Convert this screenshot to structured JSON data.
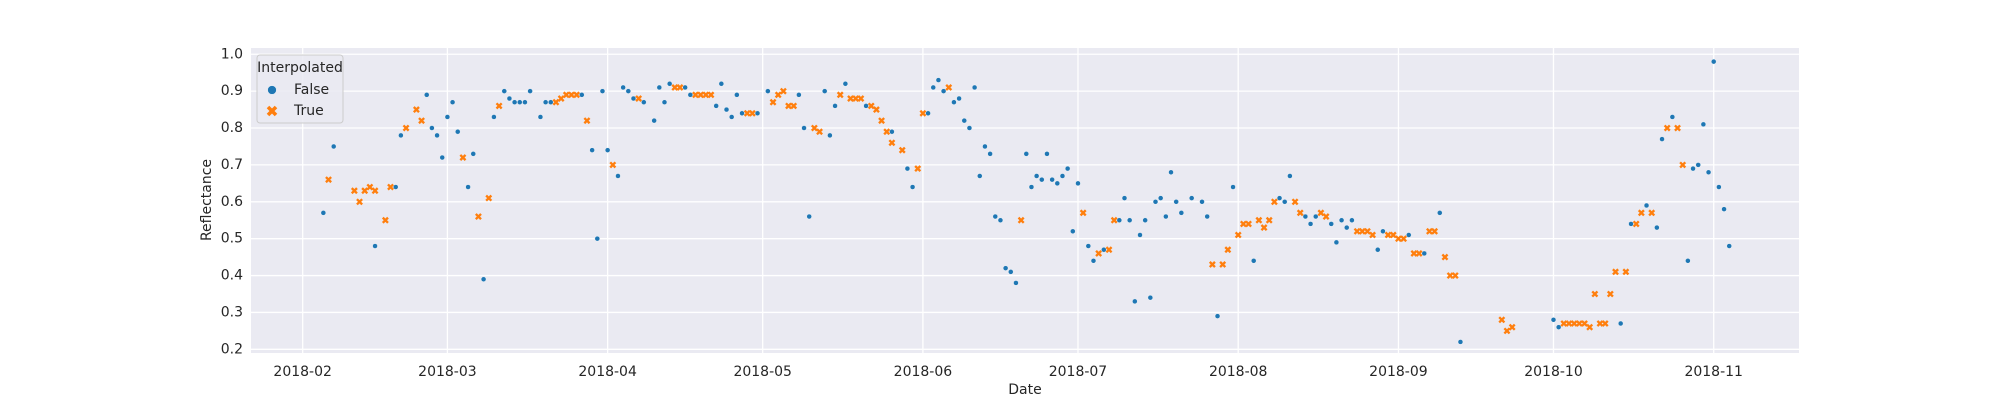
{
  "chart_data": {
    "type": "scatter",
    "xlabel": "Date",
    "ylabel": "Reflectance",
    "legend_title": "Interpolated",
    "legend": "upper left",
    "grid": true,
    "xlim": [
      22,
      321.5
    ],
    "ylim": [
      0.19,
      1.017
    ],
    "xticks": [
      {
        "value": 32,
        "label": "2018-02"
      },
      {
        "value": 60,
        "label": "2018-03"
      },
      {
        "value": 91,
        "label": "2018-04"
      },
      {
        "value": 121,
        "label": "2018-05"
      },
      {
        "value": 152,
        "label": "2018-06"
      },
      {
        "value": 182,
        "label": "2018-07"
      },
      {
        "value": 213,
        "label": "2018-08"
      },
      {
        "value": 244,
        "label": "2018-09"
      },
      {
        "value": 274,
        "label": "2018-10"
      },
      {
        "value": 305,
        "label": "2018-11"
      }
    ],
    "yticks": [
      0.2,
      0.3,
      0.4,
      0.5,
      0.6,
      0.7,
      0.8,
      0.9,
      {
        "value": 1,
        "label": "1.0"
      }
    ],
    "series": [
      {
        "name": "False",
        "color": "#1f77b4",
        "marker": "o",
        "x": [
          36,
          38,
          46,
          50,
          51,
          56,
          57,
          58,
          59,
          60,
          61,
          62,
          64,
          65,
          67,
          69,
          71,
          72,
          73,
          74,
          75,
          76,
          78,
          79,
          80,
          86,
          88,
          89,
          90,
          91,
          93,
          94,
          95,
          96,
          98,
          100,
          101,
          102,
          103,
          106,
          107,
          112,
          113,
          114,
          115,
          116,
          117,
          120,
          122,
          128,
          129,
          130,
          133,
          134,
          135,
          137,
          141,
          146,
          149,
          150,
          153,
          154,
          155,
          156,
          158,
          159,
          160,
          161,
          162,
          163,
          164,
          165,
          166,
          167,
          168,
          169,
          170,
          172,
          173,
          174,
          175,
          176,
          177,
          178,
          179,
          180,
          181,
          182,
          184,
          185,
          187,
          190,
          191,
          192,
          193,
          194,
          195,
          196,
          197,
          198,
          199,
          200,
          201,
          202,
          204,
          206,
          207,
          209,
          212,
          216,
          221,
          222,
          223,
          226,
          227,
          228,
          231,
          232,
          233,
          234,
          235,
          240,
          241,
          246,
          249,
          252,
          256,
          274,
          275,
          287,
          289,
          292,
          294,
          295,
          297,
          300,
          301,
          302,
          303,
          304,
          305,
          306,
          307,
          308
        ],
        "values": [
          0.57,
          0.75,
          0.48,
          0.64,
          0.78,
          0.89,
          0.8,
          0.78,
          0.72,
          0.83,
          0.87,
          0.79,
          0.64,
          0.73,
          0.39,
          0.83,
          0.9,
          0.88,
          0.87,
          0.87,
          0.87,
          0.9,
          0.83,
          0.87,
          0.87,
          0.89,
          0.74,
          0.5,
          0.9,
          0.74,
          0.67,
          0.91,
          0.9,
          0.88,
          0.87,
          0.82,
          0.91,
          0.87,
          0.92,
          0.91,
          0.89,
          0.86,
          0.92,
          0.85,
          0.83,
          0.89,
          0.84,
          0.84,
          0.9,
          0.89,
          0.8,
          0.56,
          0.9,
          0.78,
          0.86,
          0.92,
          0.86,
          0.79,
          0.69,
          0.64,
          0.84,
          0.91,
          0.93,
          0.9,
          0.87,
          0.88,
          0.82,
          0.8,
          0.91,
          0.67,
          0.75,
          0.73,
          0.56,
          0.55,
          0.42,
          0.41,
          0.38,
          0.73,
          0.64,
          0.67,
          0.66,
          0.73,
          0.66,
          0.65,
          0.67,
          0.69,
          0.52,
          0.65,
          0.48,
          0.44,
          0.47,
          0.55,
          0.61,
          0.55,
          0.33,
          0.51,
          0.55,
          0.34,
          0.6,
          0.61,
          0.56,
          0.68,
          0.6,
          0.57,
          0.61,
          0.6,
          0.56,
          0.29,
          0.64,
          0.44,
          0.61,
          0.6,
          0.67,
          0.56,
          0.54,
          0.56,
          0.54,
          0.49,
          0.55,
          0.53,
          0.55,
          0.47,
          0.52,
          0.51,
          0.46,
          0.57,
          0.22,
          0.28,
          0.26,
          0.27,
          0.54,
          0.59,
          0.53,
          0.77,
          0.83,
          0.44,
          0.69,
          0.7,
          0.81,
          0.68,
          0.98,
          0.64,
          0.58,
          0.48
        ]
      },
      {
        "name": "True",
        "color": "#ff7f0e",
        "marker": "x",
        "x": [
          37,
          42,
          43,
          44,
          45,
          46,
          48,
          49,
          52,
          54,
          55,
          63,
          66,
          68,
          70,
          81,
          82,
          83,
          84,
          85,
          87,
          92,
          97,
          104,
          105,
          108,
          109,
          110,
          111,
          118,
          119,
          123,
          124,
          125,
          126,
          127,
          131,
          132,
          136,
          138,
          139,
          140,
          142,
          143,
          144,
          145,
          146,
          148,
          151,
          152,
          157,
          171,
          183,
          186,
          188,
          189,
          208,
          210,
          211,
          213,
          214,
          215,
          217,
          218,
          219,
          220,
          224,
          225,
          229,
          230,
          236,
          237,
          238,
          239,
          242,
          243,
          244,
          245,
          247,
          248,
          250,
          251,
          253,
          254,
          255,
          264,
          265,
          266,
          276,
          277,
          278,
          279,
          280,
          281,
          282,
          283,
          284,
          285,
          286,
          288,
          290,
          291,
          293,
          296,
          298,
          299
        ],
        "values": [
          0.66,
          0.63,
          0.6,
          0.63,
          0.64,
          0.63,
          0.55,
          0.64,
          0.8,
          0.85,
          0.82,
          0.72,
          0.56,
          0.61,
          0.86,
          0.87,
          0.88,
          0.89,
          0.89,
          0.89,
          0.82,
          0.7,
          0.88,
          0.91,
          0.91,
          0.89,
          0.89,
          0.89,
          0.89,
          0.84,
          0.84,
          0.87,
          0.89,
          0.9,
          0.86,
          0.86,
          0.8,
          0.79,
          0.89,
          0.88,
          0.88,
          0.88,
          0.86,
          0.85,
          0.82,
          0.79,
          0.76,
          0.74,
          0.69,
          0.84,
          0.91,
          0.55,
          0.57,
          0.46,
          0.47,
          0.55,
          0.43,
          0.43,
          0.47,
          0.51,
          0.54,
          0.54,
          0.55,
          0.53,
          0.55,
          0.6,
          0.6,
          0.57,
          0.57,
          0.56,
          0.52,
          0.52,
          0.52,
          0.51,
          0.51,
          0.51,
          0.5,
          0.5,
          0.46,
          0.46,
          0.52,
          0.52,
          0.45,
          0.4,
          0.4,
          0.28,
          0.25,
          0.26,
          0.27,
          0.27,
          0.27,
          0.27,
          0.27,
          0.26,
          0.35,
          0.27,
          0.27,
          0.35,
          0.41,
          0.41,
          0.54,
          0.57,
          0.57,
          0.8,
          0.8,
          0.7
        ]
      }
    ]
  }
}
